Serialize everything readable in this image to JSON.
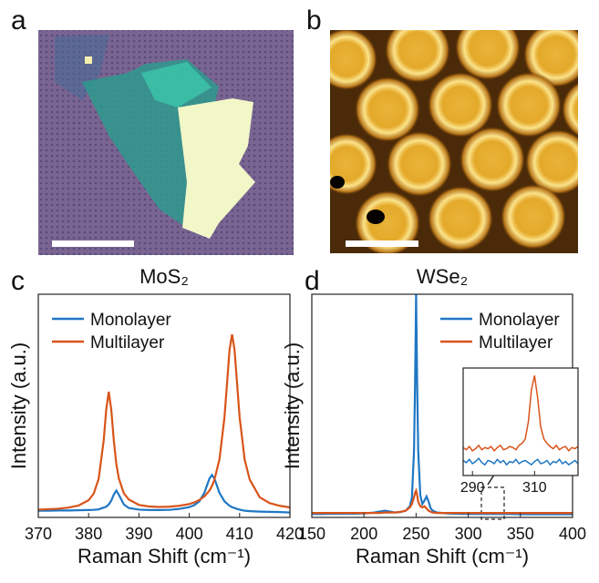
{
  "panel_labels": [
    "a",
    "b",
    "c",
    "d"
  ],
  "chart_data": [
    {
      "type": "line",
      "title": "MoS₂",
      "xlabel": "Raman Shift (cm⁻¹)",
      "ylabel": "Intensity (a.u.)",
      "x": [
        370,
        372,
        374,
        376,
        378,
        380,
        381,
        382,
        383,
        383.5,
        384,
        384.5,
        385,
        385.5,
        386,
        387,
        388,
        390,
        392,
        394,
        396,
        398,
        400,
        401,
        402,
        403,
        404,
        404.5,
        405,
        406,
        407,
        407.5,
        408,
        408.5,
        409,
        409.5,
        410,
        411,
        412,
        414,
        416,
        418,
        420
      ],
      "series": [
        {
          "name": "Monolayer",
          "color": "#1f77c4",
          "values": [
            0.03,
            0.03,
            0.031,
            0.031,
            0.032,
            0.033,
            0.034,
            0.036,
            0.044,
            0.048,
            0.058,
            0.075,
            0.102,
            0.12,
            0.102,
            0.058,
            0.042,
            0.035,
            0.033,
            0.033,
            0.034,
            0.038,
            0.046,
            0.055,
            0.072,
            0.11,
            0.174,
            0.19,
            0.174,
            0.11,
            0.072,
            0.062,
            0.052,
            0.046,
            0.042,
            0.038,
            0.035,
            0.03,
            0.028,
            0.026,
            0.025,
            0.024,
            0.022
          ]
        },
        {
          "name": "Multilayer",
          "color": "#d9541a",
          "values": [
            0.035,
            0.037,
            0.039,
            0.044,
            0.053,
            0.077,
            0.106,
            0.173,
            0.346,
            0.483,
            0.563,
            0.483,
            0.346,
            0.24,
            0.175,
            0.108,
            0.08,
            0.056,
            0.049,
            0.047,
            0.048,
            0.052,
            0.06,
            0.067,
            0.078,
            0.094,
            0.12,
            0.14,
            0.169,
            0.26,
            0.45,
            0.6,
            0.75,
            0.82,
            0.75,
            0.6,
            0.45,
            0.26,
            0.17,
            0.09,
            0.064,
            0.052,
            0.045
          ]
        }
      ],
      "xlim": [
        370,
        420
      ],
      "ylim": [
        0,
        1
      ],
      "xticks": [
        370,
        380,
        390,
        400,
        410,
        420
      ],
      "legend": "upper left"
    },
    {
      "type": "line",
      "title": "WSe₂",
      "xlabel": "Raman Shift (cm⁻¹)",
      "ylabel": "Intensity (a.u.)",
      "x": [
        150,
        160,
        170,
        180,
        190,
        200,
        210,
        215,
        220,
        225,
        230,
        235,
        240,
        244,
        246,
        248,
        249,
        250,
        251,
        252,
        254,
        256,
        258,
        260,
        262,
        264,
        266,
        270,
        280,
        290,
        300,
        310,
        320,
        330,
        340,
        350,
        360,
        370,
        380,
        390,
        400
      ],
      "series": [
        {
          "name": "Monolayer",
          "color": "#1f77c4",
          "values": [
            0.015,
            0.015,
            0.016,
            0.016,
            0.017,
            0.018,
            0.022,
            0.026,
            0.03,
            0.026,
            0.022,
            0.024,
            0.03,
            0.05,
            0.09,
            0.3,
            0.6,
            1,
            0.6,
            0.3,
            0.1,
            0.06,
            0.075,
            0.094,
            0.07,
            0.04,
            0.03,
            0.022,
            0.018,
            0.016,
            0.015,
            0.015,
            0.015,
            0.015,
            0.015,
            0.014,
            0.014,
            0.014,
            0.014,
            0.014,
            0.014
          ]
        },
        {
          "name": "Multilayer",
          "color": "#d9541a",
          "values": [
            0.02,
            0.02,
            0.02,
            0.02,
            0.02,
            0.02,
            0.02,
            0.02,
            0.022,
            0.022,
            0.022,
            0.025,
            0.03,
            0.045,
            0.06,
            0.09,
            0.11,
            0.12,
            0.1,
            0.07,
            0.05,
            0.045,
            0.05,
            0.04,
            0.03,
            0.025,
            0.022,
            0.02,
            0.02,
            0.02,
            0.02,
            0.02,
            0.02,
            0.02,
            0.02,
            0.02,
            0.02,
            0.02,
            0.02,
            0.02,
            0.02
          ]
        }
      ],
      "xlim": [
        150,
        400
      ],
      "ylim": [
        0,
        1
      ],
      "xticks": [
        150,
        200,
        250,
        300,
        350,
        400
      ],
      "legend": "upper right"
    },
    {
      "type": "line",
      "x": [
        287,
        288,
        289,
        290,
        291,
        292,
        293,
        294,
        295,
        296,
        297,
        298,
        299,
        300,
        301,
        302,
        303,
        304,
        305,
        306,
        307,
        308,
        309,
        310,
        311,
        312,
        313,
        314,
        315,
        316,
        317,
        318,
        319,
        320,
        321,
        322,
        323,
        324
      ],
      "series": [
        {
          "color": "#1f77c4",
          "values": [
            0.14,
            0.12,
            0.15,
            0.11,
            0.13,
            0.16,
            0.12,
            0.1,
            0.14,
            0.13,
            0.11,
            0.15,
            0.12,
            0.14,
            0.1,
            0.13,
            0.12,
            0.15,
            0.11,
            0.13,
            0.14,
            0.12,
            0.1,
            0.13,
            0.15,
            0.11,
            0.12,
            0.14,
            0.1,
            0.13,
            0.12,
            0.15,
            0.11,
            0.13,
            0.1,
            0.12,
            0.14,
            0.11
          ]
        },
        {
          "color": "#d9541a",
          "values": [
            0.26,
            0.24,
            0.27,
            0.23,
            0.25,
            0.28,
            0.24,
            0.26,
            0.25,
            0.27,
            0.23,
            0.26,
            0.28,
            0.24,
            0.25,
            0.27,
            0.26,
            0.24,
            0.28,
            0.3,
            0.34,
            0.5,
            0.8,
            0.93,
            0.72,
            0.45,
            0.34,
            0.3,
            0.27,
            0.25,
            0.28,
            0.24,
            0.26,
            0.27,
            0.23,
            0.26,
            0.25,
            0.27
          ]
        }
      ],
      "xlim": [
        287,
        324
      ],
      "ylim": [
        0,
        1
      ],
      "xticks": [
        290,
        310
      ]
    }
  ]
}
